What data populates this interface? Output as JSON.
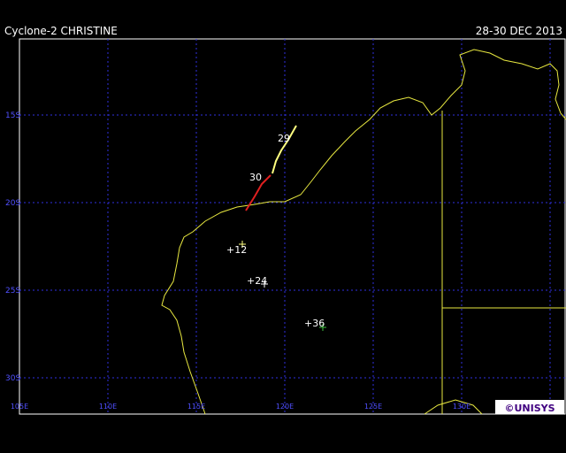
{
  "title": "Cyclone-2 CHRISTINE",
  "date": "28-30 DEC 2013",
  "lat_labels": [
    "15S",
    "20S",
    "25S",
    "30S"
  ],
  "lon_labels": [
    "105E",
    "110E",
    "115E",
    "120E",
    "125E",
    "130E"
  ],
  "track_labels": [
    "29",
    "30"
  ],
  "forecast_labels": [
    "+12",
    "+24",
    "+36"
  ],
  "credit": "©UNISYS"
}
